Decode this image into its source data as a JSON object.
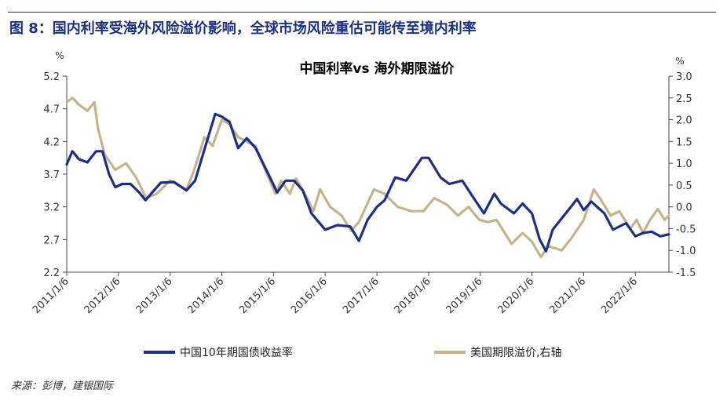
{
  "header": {
    "figure_title": "图 8：国内利率受海外风险溢价影响，全球市场风险重估可能传至境内利率"
  },
  "source": "来源：彭博，建银国际",
  "colors": {
    "title": "#1a2f8a",
    "cn10y": "#1a2f8a",
    "us_term_premium": "#c8b28a"
  },
  "chart_data": {
    "type": "line",
    "title": "中国利率vs 海外期限溢价",
    "y_left_unit": "%",
    "y_right_unit": "%",
    "y_left_ticks": [
      "5.2",
      "4.7",
      "4.2",
      "3.7",
      "3.2",
      "2.7",
      "2.2"
    ],
    "y_right_ticks": [
      "3.0",
      "2.5",
      "2.0",
      "1.5",
      "1.0",
      "0.5",
      "0.0",
      "-0.5",
      "-1.0",
      "-1.5"
    ],
    "ylim_left": [
      2.2,
      5.2
    ],
    "ylim_right": [
      -1.5,
      3.0
    ],
    "x_ticks": [
      "2011/1/6",
      "2012/1/6",
      "2013/1/6",
      "2014/1/6",
      "2015/1/6",
      "2016/1/6",
      "2017/1/6",
      "2018/1/6",
      "2019/1/6",
      "2020/1/6",
      "2021/1/6",
      "2022/1/6"
    ],
    "x_range": [
      "2011-01-06",
      "2022-08-31"
    ],
    "grid": false,
    "legend_position": "bottom",
    "series": [
      {
        "name": "中国10年期国债收益率",
        "axis": "left",
        "points": [
          [
            "2011-01-06",
            3.85
          ],
          [
            "2011-02-15",
            4.05
          ],
          [
            "2011-04-01",
            3.93
          ],
          [
            "2011-06-01",
            3.88
          ],
          [
            "2011-08-01",
            4.05
          ],
          [
            "2011-09-15",
            4.05
          ],
          [
            "2011-11-01",
            3.7
          ],
          [
            "2011-12-15",
            3.5
          ],
          [
            "2012-02-01",
            3.55
          ],
          [
            "2012-04-01",
            3.55
          ],
          [
            "2012-06-01",
            3.42
          ],
          [
            "2012-07-15",
            3.3
          ],
          [
            "2012-09-01",
            3.42
          ],
          [
            "2012-11-01",
            3.57
          ],
          [
            "2013-02-01",
            3.58
          ],
          [
            "2013-05-01",
            3.45
          ],
          [
            "2013-07-01",
            3.6
          ],
          [
            "2013-09-01",
            4.05
          ],
          [
            "2013-11-20",
            4.62
          ],
          [
            "2014-01-06",
            4.58
          ],
          [
            "2014-03-01",
            4.5
          ],
          [
            "2014-05-01",
            4.1
          ],
          [
            "2014-07-01",
            4.25
          ],
          [
            "2014-09-01",
            4.1
          ],
          [
            "2014-12-01",
            3.7
          ],
          [
            "2015-02-01",
            3.42
          ],
          [
            "2015-04-01",
            3.6
          ],
          [
            "2015-06-01",
            3.6
          ],
          [
            "2015-08-01",
            3.45
          ],
          [
            "2015-10-01",
            3.1
          ],
          [
            "2016-01-06",
            2.85
          ],
          [
            "2016-04-01",
            2.92
          ],
          [
            "2016-07-01",
            2.9
          ],
          [
            "2016-09-01",
            2.68
          ],
          [
            "2016-11-01",
            3.0
          ],
          [
            "2017-01-06",
            3.2
          ],
          [
            "2017-03-01",
            3.3
          ],
          [
            "2017-05-15",
            3.65
          ],
          [
            "2017-08-01",
            3.6
          ],
          [
            "2017-11-20",
            3.95
          ],
          [
            "2018-01-06",
            3.95
          ],
          [
            "2018-04-01",
            3.65
          ],
          [
            "2018-06-01",
            3.55
          ],
          [
            "2018-09-01",
            3.6
          ],
          [
            "2018-12-01",
            3.3
          ],
          [
            "2019-02-01",
            3.1
          ],
          [
            "2019-04-15",
            3.4
          ],
          [
            "2019-06-01",
            3.25
          ],
          [
            "2019-09-01",
            3.1
          ],
          [
            "2019-11-01",
            3.25
          ],
          [
            "2020-01-06",
            3.1
          ],
          [
            "2020-03-01",
            2.7
          ],
          [
            "2020-04-15",
            2.52
          ],
          [
            "2020-06-01",
            2.85
          ],
          [
            "2020-09-01",
            3.1
          ],
          [
            "2020-11-20",
            3.32
          ],
          [
            "2021-01-06",
            3.15
          ],
          [
            "2021-03-01",
            3.28
          ],
          [
            "2021-06-01",
            3.1
          ],
          [
            "2021-08-01",
            2.85
          ],
          [
            "2021-11-01",
            2.95
          ],
          [
            "2022-01-06",
            2.75
          ],
          [
            "2022-03-01",
            2.8
          ],
          [
            "2022-05-01",
            2.82
          ],
          [
            "2022-07-01",
            2.75
          ],
          [
            "2022-08-31",
            2.78
          ]
        ]
      },
      {
        "name": "美国期限溢价,右轴",
        "axis": "right",
        "points": [
          [
            "2011-01-06",
            2.4
          ],
          [
            "2011-02-15",
            2.5
          ],
          [
            "2011-04-01",
            2.35
          ],
          [
            "2011-06-01",
            2.2
          ],
          [
            "2011-07-20",
            2.4
          ],
          [
            "2011-08-15",
            1.8
          ],
          [
            "2011-10-01",
            1.2
          ],
          [
            "2011-12-15",
            0.85
          ],
          [
            "2012-03-01",
            1.0
          ],
          [
            "2012-05-15",
            0.65
          ],
          [
            "2012-07-20",
            0.2
          ],
          [
            "2012-10-01",
            0.3
          ],
          [
            "2013-01-06",
            0.6
          ],
          [
            "2013-05-01",
            0.4
          ],
          [
            "2013-06-20",
            0.8
          ],
          [
            "2013-09-05",
            1.6
          ],
          [
            "2013-11-01",
            1.4
          ],
          [
            "2014-01-06",
            2.0
          ],
          [
            "2014-03-01",
            1.9
          ],
          [
            "2014-05-01",
            1.6
          ],
          [
            "2014-07-01",
            1.5
          ],
          [
            "2014-09-01",
            1.4
          ],
          [
            "2014-11-01",
            0.9
          ],
          [
            "2015-01-20",
            0.3
          ],
          [
            "2015-03-01",
            0.6
          ],
          [
            "2015-05-01",
            0.3
          ],
          [
            "2015-06-15",
            0.65
          ],
          [
            "2015-09-01",
            0.2
          ],
          [
            "2015-10-15",
            -0.1
          ],
          [
            "2015-12-01",
            0.4
          ],
          [
            "2016-02-10",
            0.0
          ],
          [
            "2016-05-01",
            -0.2
          ],
          [
            "2016-07-08",
            -0.55
          ],
          [
            "2016-09-01",
            -0.35
          ],
          [
            "2016-12-15",
            0.4
          ],
          [
            "2017-03-01",
            0.3
          ],
          [
            "2017-06-01",
            0.0
          ],
          [
            "2017-09-07",
            -0.1
          ],
          [
            "2017-12-01",
            -0.1
          ],
          [
            "2018-02-15",
            0.2
          ],
          [
            "2018-05-15",
            0.05
          ],
          [
            "2018-08-01",
            -0.2
          ],
          [
            "2018-10-15",
            0.0
          ],
          [
            "2018-12-31",
            -0.3
          ],
          [
            "2019-03-01",
            -0.35
          ],
          [
            "2019-05-01",
            -0.3
          ],
          [
            "2019-08-15",
            -0.85
          ],
          [
            "2019-11-01",
            -0.6
          ],
          [
            "2020-01-06",
            -0.8
          ],
          [
            "2020-03-09",
            -1.15
          ],
          [
            "2020-05-01",
            -0.9
          ],
          [
            "2020-08-04",
            -1.0
          ],
          [
            "2020-10-15",
            -0.7
          ],
          [
            "2021-01-06",
            -0.3
          ],
          [
            "2021-03-18",
            0.4
          ],
          [
            "2021-05-01",
            0.2
          ],
          [
            "2021-07-15",
            -0.2
          ],
          [
            "2021-09-15",
            -0.1
          ],
          [
            "2021-12-01",
            -0.5
          ],
          [
            "2022-01-15",
            -0.3
          ],
          [
            "2022-03-01",
            -0.6
          ],
          [
            "2022-04-20",
            -0.3
          ],
          [
            "2022-06-14",
            -0.05
          ],
          [
            "2022-08-01",
            -0.3
          ],
          [
            "2022-08-31",
            -0.2
          ]
        ]
      }
    ]
  }
}
